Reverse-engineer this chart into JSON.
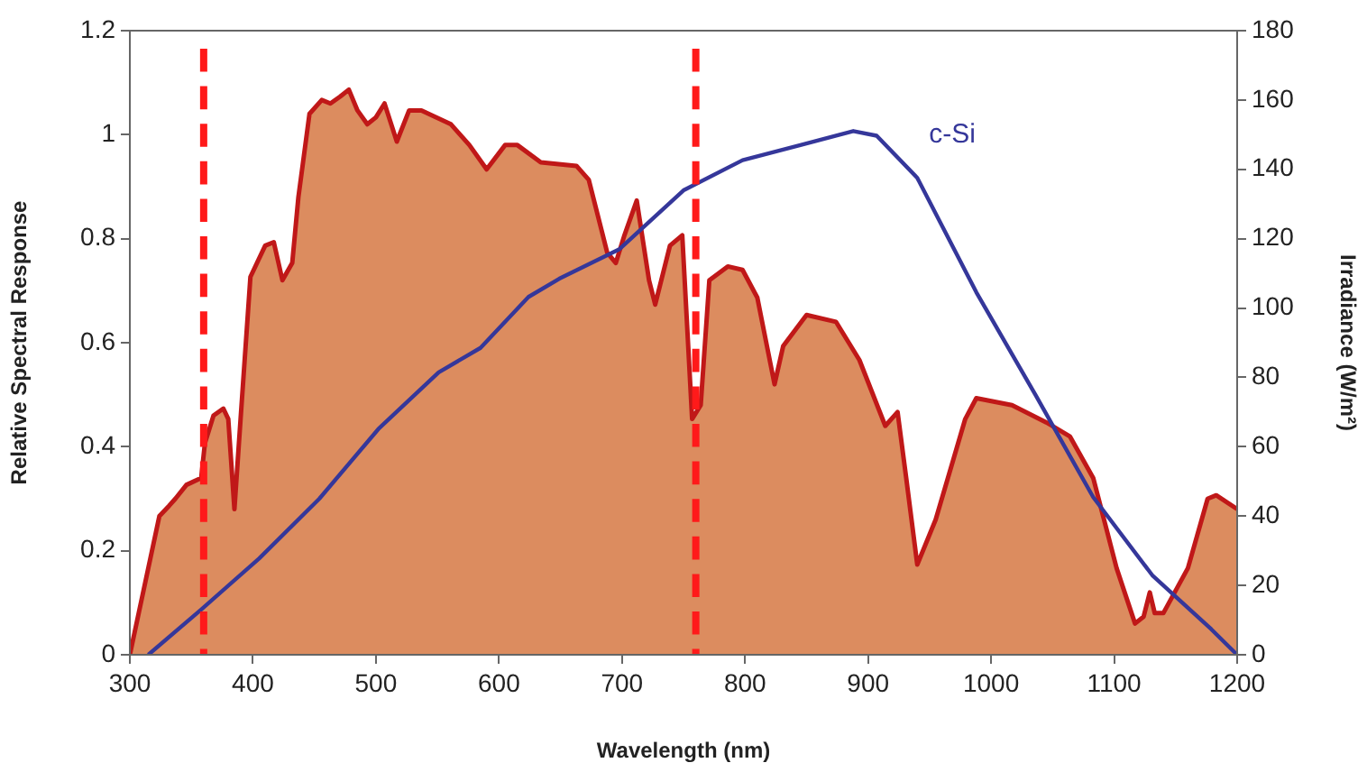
{
  "chart_data": {
    "type": "line",
    "xlabel": "Wavelength (nm)",
    "ylabel": "Relative Spectral Response",
    "y2label": "Irradiance (W/m²)",
    "xlim": [
      300,
      1200
    ],
    "xticks": [
      300,
      400,
      500,
      600,
      700,
      800,
      900,
      1000,
      1100,
      1200
    ],
    "ylim": [
      0,
      1.2
    ],
    "yticks": [
      0,
      0.2,
      0.4,
      0.6,
      0.8,
      1,
      1.2
    ],
    "y2lim": [
      0,
      180
    ],
    "y2ticks": [
      0,
      20,
      40,
      60,
      80,
      100,
      120,
      140,
      160,
      180
    ],
    "grid": false,
    "legend": false,
    "marker": "none",
    "series": [
      {
        "type": "area",
        "axis": "y2",
        "color": "#dc8c5f",
        "x": [
          300,
          324,
          332,
          337,
          346,
          358,
          361,
          368,
          376,
          380,
          385,
          390,
          398,
          410,
          417,
          424,
          432,
          437,
          446,
          456,
          463,
          471,
          478,
          485,
          493,
          500,
          507,
          517,
          527,
          537,
          561,
          576,
          590,
          605,
          615,
          634,
          663,
          673,
          688,
          695,
          702,
          712,
          722,
          727,
          739,
          749,
          757,
          764,
          771,
          786,
          798,
          810,
          824,
          831,
          850,
          874,
          893,
          914,
          924,
          931,
          940,
          955,
          979,
          988,
          1017,
          1045,
          1064,
          1083,
          1102,
          1117,
          1124,
          1129,
          1133,
          1140,
          1160,
          1176,
          1183,
          1200
        ],
        "values": [
          0,
          40,
          43,
          45,
          49,
          51,
          61,
          69,
          71,
          68,
          42,
          68,
          109,
          118,
          119,
          108,
          113,
          132,
          156,
          160,
          159,
          161,
          163,
          157,
          153,
          155,
          159,
          148,
          157,
          157,
          153,
          147,
          140,
          147,
          147,
          142,
          141,
          137,
          116,
          113,
          121,
          131,
          108,
          101,
          118,
          121,
          68,
          72,
          108,
          112,
          111,
          103,
          78,
          89,
          98,
          96,
          85,
          66,
          70,
          51,
          26,
          39,
          68,
          74,
          72,
          67,
          63,
          51,
          25,
          9,
          11,
          18,
          12,
          12,
          25,
          45,
          46,
          42
        ]
      },
      {
        "type": "line",
        "axis": "y",
        "name": "c-Si",
        "color": "#35379a",
        "x": [
          315,
          358,
          405,
          454,
          502,
          551,
          585,
          624,
          649,
          698,
          750,
          798,
          845,
          888,
          907,
          940,
          988,
          1036,
          1083,
          1131,
          1179,
          1200
        ],
        "values": [
          0,
          0.087,
          0.185,
          0.3,
          0.434,
          0.543,
          0.59,
          0.688,
          0.723,
          0.78,
          0.893,
          0.951,
          0.98,
          1.007,
          0.998,
          0.917,
          0.697,
          0.5,
          0.303,
          0.153,
          0.049,
          0
        ]
      }
    ],
    "ref_lines": [
      {
        "axis": "x",
        "value": 360,
        "color": "#ff1a1a",
        "line_style": "dashed"
      },
      {
        "axis": "x",
        "value": 760,
        "color": "#ff1a1a",
        "line_style": "dashed"
      }
    ]
  }
}
